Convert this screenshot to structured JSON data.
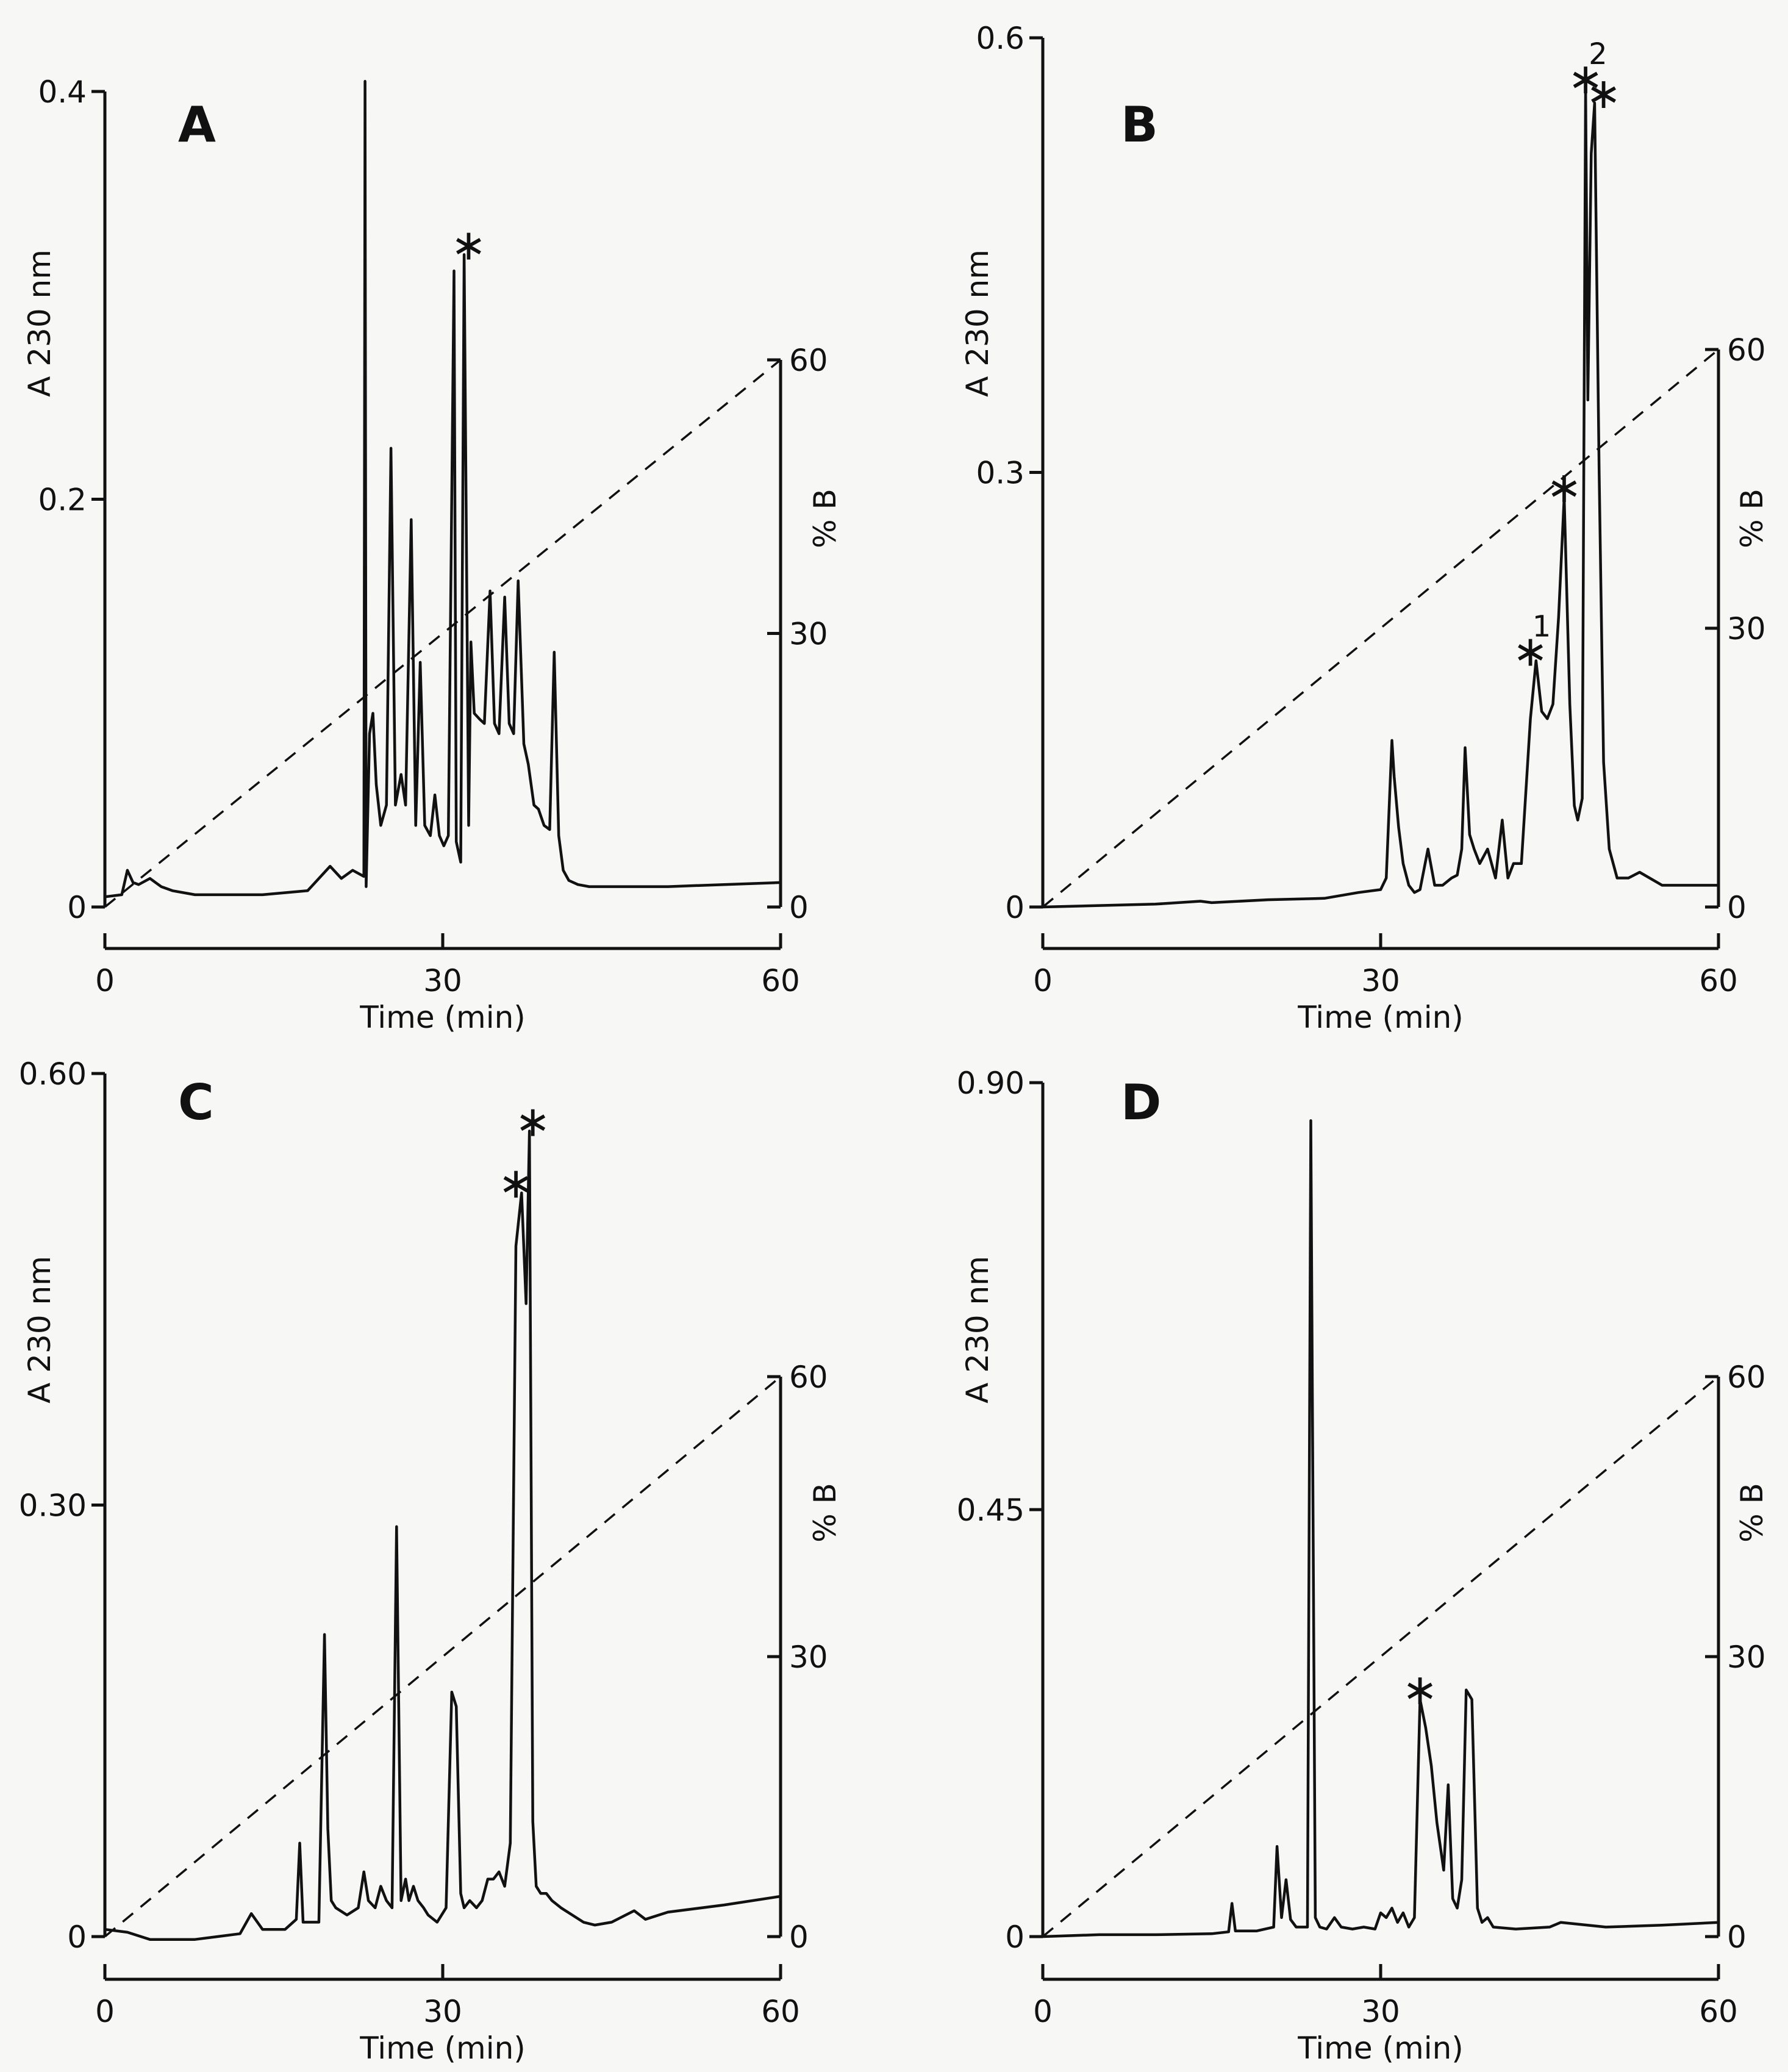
{
  "chart_data": [
    {
      "type": "line",
      "panel": "A",
      "xlabel": "Time (min)",
      "ylabel": "A 230 nm",
      "y2label": "% B",
      "xlim": [
        0,
        60
      ],
      "ylim": [
        0,
        0.4
      ],
      "y2lim": [
        0,
        60
      ],
      "xticks": [
        "0",
        "30",
        "60"
      ],
      "yticks": [
        "0",
        "0.2",
        "0.4"
      ],
      "y2ticks": [
        "0",
        "30",
        "60"
      ],
      "series": [
        {
          "name": "A 230 nm",
          "x": [
            0,
            1.5,
            2,
            2.5,
            3,
            4,
            5,
            6,
            8,
            10,
            14,
            18,
            20,
            21,
            22,
            23,
            23.1,
            23.2,
            23.5,
            23.8,
            24.1,
            24.5,
            25,
            25.4,
            25.8,
            26.3,
            26.7,
            27.2,
            27.6,
            28,
            28.4,
            28.9,
            29.3,
            29.7,
            30.1,
            30.5,
            31,
            31.2,
            31.6,
            31.9,
            32.3,
            32.5,
            32.8,
            33.3,
            33.7,
            34.2,
            34.6,
            35,
            35.5,
            35.9,
            36.3,
            36.7,
            37.2,
            37.6,
            38.1,
            38.5,
            39,
            39.5,
            39.9,
            40.3,
            40.7,
            41.2,
            42,
            43,
            45,
            50,
            55,
            60
          ],
          "y": [
            0.005,
            0.006,
            0.018,
            0.012,
            0.011,
            0.014,
            0.01,
            0.008,
            0.006,
            0.006,
            0.006,
            0.008,
            0.02,
            0.014,
            0.018,
            0.015,
            0.405,
            0.01,
            0.085,
            0.095,
            0.06,
            0.04,
            0.05,
            0.225,
            0.05,
            0.065,
            0.05,
            0.19,
            0.04,
            0.12,
            0.04,
            0.035,
            0.055,
            0.035,
            0.03,
            0.035,
            0.312,
            0.032,
            0.022,
            0.32,
            0.04,
            0.13,
            0.095,
            0.092,
            0.09,
            0.155,
            0.09,
            0.085,
            0.152,
            0.09,
            0.085,
            0.16,
            0.08,
            0.07,
            0.05,
            0.048,
            0.04,
            0.038,
            0.125,
            0.035,
            0.018,
            0.013,
            0.011,
            0.01,
            0.01,
            0.01,
            0.011,
            0.012
          ]
        },
        {
          "name": "% B",
          "x": [
            0,
            60
          ],
          "y": [
            0,
            60
          ],
          "style": "dashed"
        }
      ],
      "annotations": [
        {
          "text": "*",
          "x": 32.3,
          "y": 0.32
        }
      ]
    },
    {
      "type": "line",
      "panel": "B",
      "xlabel": "Time (min)",
      "ylabel": "A 230 nm",
      "y2label": "% B",
      "xlim": [
        0,
        60
      ],
      "ylim": [
        0,
        0.6
      ],
      "y2lim": [
        0,
        60
      ],
      "xticks": [
        "0",
        "30",
        "60"
      ],
      "yticks": [
        "0",
        "0.3",
        "0.6"
      ],
      "y2ticks": [
        "0",
        "30",
        "60"
      ],
      "series": [
        {
          "name": "A 230 nm",
          "x": [
            0,
            5,
            10,
            14,
            15,
            20,
            25,
            28,
            30,
            30.5,
            31,
            31.2,
            31.6,
            32,
            32.5,
            33,
            33.5,
            34.2,
            34.8,
            35.5,
            36.3,
            36.8,
            37.2,
            37.5,
            37.9,
            38.3,
            38.8,
            39.5,
            40.2,
            40.8,
            41.3,
            41.8,
            42.5,
            43.3,
            43.8,
            44.3,
            44.8,
            45.3,
            45.8,
            46.3,
            46.8,
            47.2,
            47.5,
            47.9,
            48.2,
            48.4,
            48.7,
            49,
            49.4,
            49.8,
            50.3,
            51,
            52,
            53,
            55,
            58,
            60
          ],
          "y": [
            0.0,
            0.001,
            0.002,
            0.004,
            0.003,
            0.005,
            0.006,
            0.01,
            0.012,
            0.02,
            0.115,
            0.09,
            0.055,
            0.03,
            0.015,
            0.01,
            0.012,
            0.04,
            0.015,
            0.015,
            0.02,
            0.022,
            0.04,
            0.11,
            0.05,
            0.04,
            0.03,
            0.04,
            0.02,
            0.06,
            0.02,
            0.03,
            0.03,
            0.13,
            0.17,
            0.135,
            0.13,
            0.14,
            0.2,
            0.283,
            0.14,
            0.07,
            0.06,
            0.075,
            0.565,
            0.35,
            0.52,
            0.555,
            0.3,
            0.1,
            0.04,
            0.02,
            0.02,
            0.024,
            0.015,
            0.015,
            0.015
          ]
        },
        {
          "name": "% B",
          "x": [
            0,
            60
          ],
          "y": [
            0,
            60
          ],
          "style": "dashed"
        }
      ],
      "annotations": [
        {
          "text": "*",
          "x": 43.3,
          "y": 0.17
        },
        {
          "text": "1",
          "x": 44.3,
          "y": 0.17
        },
        {
          "text": "*",
          "x": 46.3,
          "y": 0.283
        },
        {
          "text": "*",
          "x": 48.2,
          "y": 0.565
        },
        {
          "text": "2",
          "x": 49.3,
          "y": 0.565
        },
        {
          "text": "*",
          "x": 49.8,
          "y": 0.555
        }
      ]
    },
    {
      "type": "line",
      "panel": "C",
      "xlabel": "Time (min)",
      "ylabel": "A 230 nm",
      "y2label": "% B",
      "xlim": [
        0,
        60
      ],
      "ylim": [
        0,
        0.6
      ],
      "y2lim": [
        0,
        60
      ],
      "xticks": [
        "0",
        "30",
        "60"
      ],
      "yticks": [
        "0",
        "0.30",
        "0.60"
      ],
      "y2ticks": [
        "0",
        "30",
        "60"
      ],
      "series": [
        {
          "name": "A 230 nm",
          "x": [
            0,
            2,
            4,
            6,
            8,
            10,
            12,
            13,
            14,
            16,
            17,
            17.3,
            17.6,
            19,
            19.5,
            19.8,
            20.1,
            20.5,
            21.5,
            22.5,
            23,
            23.4,
            24,
            24.5,
            25,
            25.5,
            25.9,
            26.3,
            26.7,
            27,
            27.4,
            27.8,
            28.3,
            28.7,
            29.5,
            30.3,
            30.8,
            31.2,
            31.6,
            31.9,
            32.4,
            33,
            33.5,
            34,
            34.5,
            35,
            35.5,
            36,
            36.5,
            37,
            37.4,
            37.7,
            38,
            38.3,
            38.7,
            39.2,
            39.7,
            40.5,
            41.5,
            42.5,
            43.5,
            45,
            47,
            48,
            50,
            55,
            60
          ],
          "y": [
            0.005,
            0.003,
            -0.002,
            -0.002,
            -0.002,
            0.0,
            0.002,
            0.016,
            0.005,
            0.005,
            0.012,
            0.065,
            0.01,
            0.01,
            0.21,
            0.075,
            0.025,
            0.02,
            0.015,
            0.02,
            0.045,
            0.025,
            0.02,
            0.035,
            0.025,
            0.02,
            0.285,
            0.025,
            0.04,
            0.025,
            0.035,
            0.025,
            0.02,
            0.015,
            0.01,
            0.02,
            0.17,
            0.16,
            0.03,
            0.02,
            0.025,
            0.02,
            0.025,
            0.04,
            0.04,
            0.045,
            0.035,
            0.065,
            0.48,
            0.517,
            0.44,
            0.56,
            0.08,
            0.035,
            0.03,
            0.03,
            0.025,
            0.02,
            0.015,
            0.01,
            0.008,
            0.01,
            0.018,
            0.012,
            0.017,
            0.022,
            0.028
          ]
        },
        {
          "name": "% B",
          "x": [
            0,
            60
          ],
          "y": [
            0,
            60
          ],
          "style": "dashed"
        }
      ],
      "annotations": [
        {
          "text": "*",
          "x": 36.5,
          "y": 0.517
        },
        {
          "text": "*",
          "x": 38.0,
          "y": 0.56
        }
      ]
    },
    {
      "type": "line",
      "panel": "D",
      "xlabel": "Time (min)",
      "ylabel": "A 230 nm",
      "y2label": "% B",
      "xlim": [
        0,
        60
      ],
      "ylim": [
        0,
        0.9
      ],
      "y2lim": [
        0,
        60
      ],
      "xticks": [
        "0",
        "30",
        "60"
      ],
      "yticks": [
        "0",
        "0.45",
        "0.90"
      ],
      "y2ticks": [
        "0",
        "30",
        "60"
      ],
      "series": [
        {
          "name": "A 230 nm",
          "x": [
            0,
            5,
            10,
            15,
            16.5,
            16.8,
            17.1,
            19,
            20.5,
            20.8,
            21.2,
            21.6,
            22,
            22.5,
            23.5,
            23.8,
            24.2,
            24.6,
            25.2,
            25.9,
            26.5,
            27.5,
            28.5,
            29.5,
            30,
            30.5,
            31,
            31.5,
            32,
            32.5,
            33,
            33.5,
            34,
            34.5,
            35,
            35.6,
            36,
            36.4,
            36.8,
            37.2,
            37.6,
            38.1,
            38.6,
            39,
            39.5,
            40,
            42,
            45,
            46,
            50,
            55,
            60
          ],
          "y": [
            0.0,
            0.002,
            0.002,
            0.003,
            0.005,
            0.035,
            0.006,
            0.006,
            0.01,
            0.095,
            0.02,
            0.06,
            0.018,
            0.01,
            0.01,
            0.86,
            0.02,
            0.01,
            0.008,
            0.02,
            0.01,
            0.008,
            0.01,
            0.008,
            0.025,
            0.02,
            0.03,
            0.015,
            0.025,
            0.01,
            0.02,
            0.25,
            0.22,
            0.18,
            0.12,
            0.07,
            0.16,
            0.04,
            0.03,
            0.06,
            0.26,
            0.25,
            0.03,
            0.015,
            0.02,
            0.01,
            0.008,
            0.01,
            0.015,
            0.01,
            0.012,
            0.015
          ]
        },
        {
          "name": "% B",
          "x": [
            0,
            60
          ],
          "y": [
            0,
            60
          ],
          "style": "dashed"
        }
      ],
      "annotations": [
        {
          "text": "*",
          "x": 33.5,
          "y": 0.25
        }
      ]
    }
  ],
  "panels": [
    {
      "letter": "A",
      "ylabel": "A 230 nm",
      "y2label": "% B",
      "xlabel": "Time (min)",
      "yticks": [
        "0",
        "0.2",
        "0.4"
      ],
      "y2ticks": [
        "0",
        "30",
        "60"
      ],
      "xticks": [
        "0",
        "30",
        "60"
      ]
    },
    {
      "letter": "B",
      "ylabel": "A 230 nm",
      "y2label": "% B",
      "xlabel": "Time (min)",
      "yticks": [
        "0",
        "0.3",
        "0.6"
      ],
      "y2ticks": [
        "0",
        "30",
        "60"
      ],
      "xticks": [
        "0",
        "30",
        "60"
      ]
    },
    {
      "letter": "C",
      "ylabel": "A 230 nm",
      "y2label": "% B",
      "xlabel": "Time (min)",
      "yticks": [
        "0",
        "0.30",
        "0.60"
      ],
      "y2ticks": [
        "0",
        "30",
        "60"
      ],
      "xticks": [
        "0",
        "30",
        "60"
      ]
    },
    {
      "letter": "D",
      "ylabel": "A 230 nm",
      "y2label": "% B",
      "xlabel": "Time (min)",
      "yticks": [
        "0",
        "0.45",
        "0.90"
      ],
      "y2ticks": [
        "0",
        "30",
        "60"
      ],
      "xticks": [
        "0",
        "30",
        "60"
      ]
    }
  ]
}
